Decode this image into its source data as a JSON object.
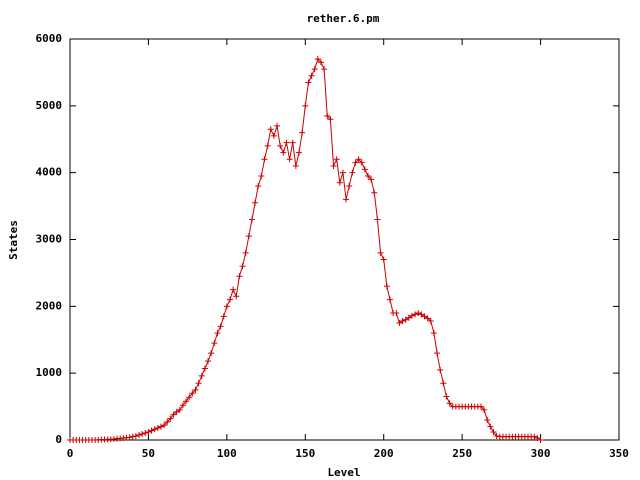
{
  "chart_data": {
    "type": "line",
    "title": "rether.6.pm",
    "xlabel": "Level",
    "ylabel": "States",
    "x": [
      0,
      2,
      4,
      6,
      8,
      10,
      12,
      14,
      16,
      18,
      20,
      22,
      24,
      26,
      28,
      30,
      32,
      34,
      36,
      38,
      40,
      42,
      44,
      46,
      48,
      50,
      52,
      54,
      56,
      58,
      60,
      62,
      64,
      66,
      68,
      70,
      72,
      74,
      76,
      78,
      80,
      82,
      84,
      86,
      88,
      90,
      92,
      94,
      96,
      98,
      100,
      102,
      104,
      106,
      108,
      110,
      112,
      114,
      116,
      118,
      120,
      122,
      124,
      126,
      128,
      130,
      132,
      134,
      136,
      138,
      140,
      142,
      144,
      146,
      148,
      150,
      152,
      154,
      156,
      158,
      160,
      162,
      164,
      166,
      168,
      170,
      172,
      174,
      176,
      178,
      180,
      182,
      184,
      186,
      188,
      190,
      192,
      194,
      196,
      198,
      200,
      202,
      204,
      206,
      208,
      210,
      212,
      214,
      216,
      218,
      220,
      222,
      224,
      226,
      228,
      230,
      232,
      234,
      236,
      238,
      240,
      242,
      244,
      246,
      248,
      250,
      252,
      254,
      256,
      258,
      260,
      262,
      264,
      266,
      268,
      270,
      272,
      274,
      276,
      278,
      280,
      282,
      284,
      286,
      288,
      290,
      292,
      294,
      296,
      298,
      300
    ],
    "series": [
      {
        "name": "rether.6.pm",
        "color": "#cc0000",
        "values": [
          0,
          0,
          0,
          0,
          0,
          0,
          0,
          0,
          0,
          2,
          5,
          8,
          10,
          12,
          15,
          20,
          25,
          30,
          35,
          40,
          50,
          60,
          75,
          90,
          105,
          120,
          140,
          160,
          180,
          200,
          220,
          270,
          320,
          380,
          420,
          450,
          520,
          580,
          640,
          700,
          750,
          850,
          960,
          1070,
          1180,
          1300,
          1450,
          1600,
          1700,
          1850,
          2000,
          2100,
          2250,
          2150,
          2450,
          2600,
          2800,
          3050,
          3300,
          3550,
          3800,
          3950,
          4200,
          4400,
          4650,
          4550,
          4700,
          4400,
          4300,
          4450,
          4200,
          4450,
          4100,
          4300,
          4600,
          5000,
          5350,
          5450,
          5550,
          5700,
          5650,
          5550,
          4850,
          4800,
          4100,
          4200,
          3850,
          4000,
          3600,
          3800,
          4000,
          4150,
          4200,
          4150,
          4050,
          3950,
          3900,
          3700,
          3300,
          2800,
          2700,
          2300,
          2100,
          1900,
          1900,
          1750,
          1780,
          1800,
          1830,
          1860,
          1880,
          1900,
          1880,
          1850,
          1820,
          1780,
          1600,
          1300,
          1050,
          850,
          650,
          550,
          500,
          500,
          500,
          500,
          500,
          500,
          500,
          500,
          500,
          500,
          450,
          300,
          200,
          120,
          60,
          50,
          50,
          50,
          50,
          50,
          50,
          50,
          50,
          50,
          50,
          50,
          50,
          30,
          0
        ]
      }
    ],
    "xlim": [
      0,
      350
    ],
    "xticks": [
      0,
      50,
      100,
      150,
      200,
      250,
      300,
      350
    ],
    "ylim": [
      0,
      6000
    ],
    "yticks": [
      0,
      1000,
      2000,
      3000,
      4000,
      5000,
      6000
    ]
  }
}
